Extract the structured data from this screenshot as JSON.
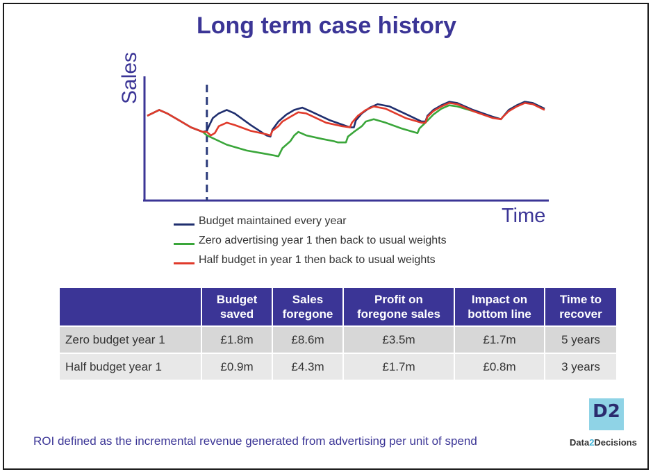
{
  "page": {
    "title": "Long term case history"
  },
  "chart_data": {
    "type": "line",
    "title": "Long term case history",
    "ylabel": "Sales",
    "xlabel": "Time",
    "xlim": [
      0,
      100
    ],
    "ylim": [
      0,
      100
    ],
    "grid": false,
    "legend_placement": "bottom",
    "marker_line_x": 15,
    "series": [
      {
        "name": "Budget maintained every year",
        "color": "#1f2e6e",
        "points": [
          [
            0,
            72
          ],
          [
            3,
            77
          ],
          [
            5,
            74
          ],
          [
            8,
            68
          ],
          [
            11,
            62
          ],
          [
            14,
            58
          ],
          [
            15,
            59
          ],
          [
            15.5,
            63
          ],
          [
            16.5,
            70
          ],
          [
            18,
            74
          ],
          [
            20,
            77
          ],
          [
            22,
            74
          ],
          [
            26,
            64
          ],
          [
            30,
            55
          ],
          [
            31,
            54
          ],
          [
            31.5,
            60
          ],
          [
            33,
            67
          ],
          [
            35,
            73
          ],
          [
            37,
            77
          ],
          [
            39,
            79
          ],
          [
            41,
            76
          ],
          [
            46,
            68
          ],
          [
            51,
            62
          ],
          [
            52,
            62
          ],
          [
            52.5,
            68
          ],
          [
            54,
            74
          ],
          [
            56,
            79
          ],
          [
            58,
            82
          ],
          [
            61,
            80
          ],
          [
            66,
            72
          ],
          [
            69,
            67
          ],
          [
            70,
            67
          ],
          [
            70.5,
            72
          ],
          [
            72,
            77
          ],
          [
            74,
            81
          ],
          [
            76,
            84
          ],
          [
            78,
            83
          ],
          [
            82,
            77
          ],
          [
            87,
            71
          ],
          [
            89,
            69
          ],
          [
            89.5,
            71
          ],
          [
            91,
            77
          ],
          [
            93,
            81
          ],
          [
            95,
            84
          ],
          [
            97,
            83
          ],
          [
            100,
            78
          ]
        ]
      },
      {
        "name": "Zero advertising year 1 then back to usual weights",
        "color": "#3aa63a",
        "points": [
          [
            0,
            72
          ],
          [
            3,
            77
          ],
          [
            5,
            74
          ],
          [
            8,
            68
          ],
          [
            11,
            62
          ],
          [
            14,
            58
          ],
          [
            15,
            55
          ],
          [
            20,
            47
          ],
          [
            25,
            42
          ],
          [
            30,
            39
          ],
          [
            33,
            37
          ],
          [
            34,
            44
          ],
          [
            36,
            50
          ],
          [
            37,
            55
          ],
          [
            38,
            58
          ],
          [
            40,
            55
          ],
          [
            44,
            52
          ],
          [
            47,
            50
          ],
          [
            48,
            49
          ],
          [
            49,
            49
          ],
          [
            50,
            49
          ],
          [
            50.5,
            54
          ],
          [
            52,
            58
          ],
          [
            54,
            63
          ],
          [
            55,
            67
          ],
          [
            57,
            69
          ],
          [
            60,
            66
          ],
          [
            64,
            61
          ],
          [
            67,
            58
          ],
          [
            68,
            57
          ],
          [
            68.5,
            61
          ],
          [
            70,
            66
          ],
          [
            72,
            73
          ],
          [
            74,
            78
          ],
          [
            76,
            81
          ],
          [
            78,
            80
          ],
          [
            82,
            76
          ],
          [
            87,
            71
          ],
          [
            89,
            69
          ],
          [
            89.5,
            71
          ],
          [
            91,
            77
          ],
          [
            93,
            81
          ],
          [
            95,
            84
          ],
          [
            97,
            83
          ],
          [
            100,
            78
          ]
        ]
      },
      {
        "name": "Half budget in year 1 then back to usual weights",
        "color": "#e03a2b",
        "points": [
          [
            0,
            72
          ],
          [
            3,
            77
          ],
          [
            5,
            74
          ],
          [
            8,
            68
          ],
          [
            11,
            62
          ],
          [
            14,
            58
          ],
          [
            15,
            58
          ],
          [
            16,
            55
          ],
          [
            17,
            57
          ],
          [
            17.5,
            60
          ],
          [
            18,
            63
          ],
          [
            20,
            66
          ],
          [
            22,
            64
          ],
          [
            26,
            59
          ],
          [
            30,
            56
          ],
          [
            31,
            55
          ],
          [
            31.5,
            59
          ],
          [
            33,
            63
          ],
          [
            34,
            67
          ],
          [
            35,
            69
          ],
          [
            36,
            71
          ],
          [
            38,
            75
          ],
          [
            40,
            74
          ],
          [
            45,
            66
          ],
          [
            49,
            63
          ],
          [
            51,
            62
          ],
          [
            51.5,
            66
          ],
          [
            53,
            72
          ],
          [
            55,
            77
          ],
          [
            57,
            80
          ],
          [
            60,
            78
          ],
          [
            65,
            70
          ],
          [
            69,
            66
          ],
          [
            70,
            66
          ],
          [
            70.5,
            71
          ],
          [
            72,
            76
          ],
          [
            74,
            80
          ],
          [
            76,
            83
          ],
          [
            78,
            82
          ],
          [
            82,
            76
          ],
          [
            87,
            70
          ],
          [
            89,
            69
          ],
          [
            89.5,
            71
          ],
          [
            91,
            76
          ],
          [
            93,
            80
          ],
          [
            95,
            83
          ],
          [
            97,
            82
          ],
          [
            100,
            77
          ]
        ]
      }
    ],
    "table": {
      "columns": [
        "",
        "Budget saved",
        "Sales foregone",
        "Profit on foregone sales",
        "Impact on bottom line",
        "Time to recover"
      ],
      "rows": [
        [
          "Zero budget year 1",
          "£1.8m",
          "£8.6m",
          "£3.5m",
          "£1.7m",
          "5 years"
        ],
        [
          "Half budget year 1",
          "£0.9m",
          "£4.3m",
          "£1.7m",
          "£0.8m",
          "3 years"
        ]
      ]
    }
  },
  "table": {
    "headers": [
      {
        "l1": "",
        "l2": ""
      },
      {
        "l1": "Budget",
        "l2": "saved"
      },
      {
        "l1": "Sales",
        "l2": "foregone"
      },
      {
        "l1": "Profit on",
        "l2": "foregone sales"
      },
      {
        "l1": "Impact on",
        "l2": "bottom line"
      },
      {
        "l1": "Time to",
        "l2": "recover"
      }
    ],
    "rows": [
      [
        "Zero budget year 1",
        "£1.8m",
        "£8.6m",
        "£3.5m",
        "£1.7m",
        "5 years"
      ],
      [
        "Half budget year 1",
        "£0.9m",
        "£4.3m",
        "£1.7m",
        "£0.8m",
        "3 years"
      ]
    ]
  },
  "footer": {
    "note": "ROI defined as the incremental revenue generated from advertising per unit of spend",
    "logo_mark": "D2",
    "logo_text_a": "Data",
    "logo_text_b": "2",
    "logo_text_c": "Decisions"
  },
  "colors": {
    "accent": "#3b3596",
    "header_bg": "#3b3596",
    "row_a": "#d7d7d7",
    "row_b": "#e8e8e8",
    "logo": "#8fd3e6"
  }
}
